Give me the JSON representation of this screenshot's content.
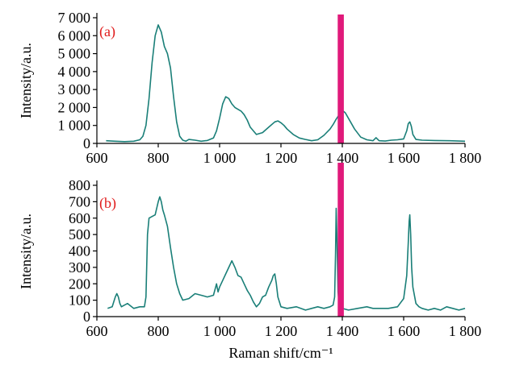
{
  "colors": {
    "series": "#1a7f78",
    "highlight": "#e0197a",
    "panel_label": "#e01b1b",
    "axis": "#000000"
  },
  "chart_data": [
    {
      "type": "line",
      "panel_label": "(a)",
      "ylabel": "Intensity/a.u.",
      "xlabel": "",
      "xlim": [
        600,
        1800
      ],
      "ylim": [
        0,
        7000
      ],
      "x_ticks": [
        600,
        800,
        1000,
        1200,
        1400,
        1600,
        1800
      ],
      "x_tick_labels": [
        "600",
        "800",
        "1 000",
        "1 200",
        "1 400",
        "1 600",
        "1 800"
      ],
      "y_ticks": [
        0,
        1000,
        2000,
        3000,
        4000,
        5000,
        6000,
        7000
      ],
      "y_tick_labels": [
        "0",
        "1 000",
        "2 000",
        "3 000",
        "4 000",
        "5 000",
        "6 000",
        "7 000"
      ],
      "highlight_band": [
        1385,
        1405
      ],
      "series": [
        {
          "x": [
            630,
            660,
            690,
            720,
            740,
            750,
            760,
            770,
            780,
            790,
            800,
            810,
            820,
            830,
            840,
            850,
            860,
            870,
            880,
            890,
            900,
            920,
            940,
            960,
            980,
            990,
            1000,
            1010,
            1020,
            1030,
            1040,
            1050,
            1060,
            1070,
            1080,
            1090,
            1100,
            1120,
            1140,
            1160,
            1180,
            1190,
            1200,
            1210,
            1220,
            1240,
            1260,
            1280,
            1300,
            1320,
            1340,
            1360,
            1370,
            1380,
            1390,
            1400,
            1410,
            1420,
            1440,
            1460,
            1480,
            1500,
            1510,
            1520,
            1540,
            1560,
            1580,
            1600,
            1610,
            1615,
            1620,
            1625,
            1630,
            1640,
            1660,
            1700,
            1750,
            1800
          ],
          "y": [
            150,
            120,
            100,
            120,
            200,
            400,
            1000,
            2500,
            4500,
            6000,
            6600,
            6200,
            5400,
            5000,
            4200,
            2600,
            1200,
            400,
            180,
            120,
            220,
            180,
            120,
            160,
            300,
            700,
            1400,
            2200,
            2600,
            2500,
            2200,
            2000,
            1900,
            1800,
            1600,
            1300,
            900,
            500,
            600,
            900,
            1200,
            1250,
            1150,
            1000,
            800,
            500,
            300,
            220,
            150,
            200,
            450,
            800,
            1050,
            1350,
            1600,
            1850,
            1700,
            1400,
            800,
            350,
            200,
            150,
            320,
            150,
            130,
            180,
            200,
            250,
            700,
            1100,
            1200,
            950,
            500,
            220,
            180,
            160,
            150,
            120
          ]
        }
      ]
    },
    {
      "type": "line",
      "panel_label": "(b)",
      "ylabel": "Intensity/a.u.",
      "xlabel": "Raman shift/cm⁻¹",
      "xlim": [
        600,
        1800
      ],
      "ylim": [
        0,
        800
      ],
      "x_ticks": [
        600,
        800,
        1000,
        1200,
        1400,
        1600,
        1800
      ],
      "x_tick_labels": [
        "600",
        "800",
        "1 000",
        "1 200",
        "1 400",
        "1 600",
        "1 800"
      ],
      "y_ticks": [
        0,
        100,
        200,
        300,
        400,
        500,
        600,
        700,
        800
      ],
      "y_tick_labels": [
        "0",
        "100",
        "200",
        "300",
        "400",
        "500",
        "600",
        "700",
        "800"
      ],
      "highlight_band": [
        1385,
        1405
      ],
      "series": [
        {
          "x": [
            635,
            650,
            660,
            665,
            670,
            675,
            680,
            690,
            700,
            720,
            740,
            755,
            760,
            765,
            770,
            780,
            790,
            800,
            805,
            810,
            815,
            820,
            830,
            840,
            850,
            860,
            870,
            880,
            900,
            920,
            940,
            960,
            980,
            990,
            995,
            1000,
            1010,
            1020,
            1030,
            1040,
            1050,
            1060,
            1070,
            1080,
            1090,
            1100,
            1110,
            1120,
            1130,
            1140,
            1150,
            1160,
            1170,
            1175,
            1180,
            1185,
            1190,
            1200,
            1220,
            1250,
            1280,
            1300,
            1320,
            1340,
            1360,
            1370,
            1375,
            1378,
            1380,
            1383,
            1386,
            1390,
            1400,
            1420,
            1450,
            1480,
            1500,
            1550,
            1580,
            1600,
            1610,
            1615,
            1618,
            1620,
            1623,
            1626,
            1630,
            1640,
            1650,
            1660,
            1680,
            1700,
            1720,
            1740,
            1760,
            1780,
            1800
          ],
          "y": [
            50,
            60,
            120,
            140,
            120,
            80,
            60,
            70,
            80,
            50,
            60,
            60,
            120,
            500,
            600,
            610,
            620,
            700,
            730,
            700,
            650,
            620,
            550,
            420,
            300,
            200,
            140,
            100,
            110,
            140,
            130,
            120,
            130,
            200,
            150,
            180,
            220,
            260,
            300,
            340,
            300,
            250,
            240,
            200,
            160,
            130,
            90,
            60,
            80,
            120,
            130,
            180,
            220,
            250,
            260,
            200,
            120,
            60,
            50,
            60,
            40,
            50,
            60,
            50,
            60,
            70,
            120,
            380,
            660,
            450,
            150,
            70,
            50,
            40,
            50,
            60,
            50,
            50,
            60,
            110,
            250,
            450,
            580,
            620,
            500,
            300,
            180,
            80,
            60,
            50,
            40,
            50,
            40,
            60,
            50,
            40,
            50
          ]
        }
      ]
    }
  ]
}
